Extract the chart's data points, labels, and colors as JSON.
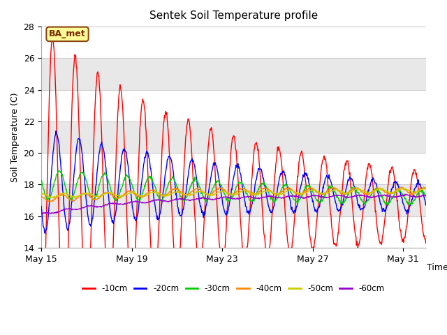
{
  "title": "Sentek Soil Temperature profile",
  "xlabel": "Time",
  "ylabel": "Soil Temperature (C)",
  "ylim": [
    14,
    28
  ],
  "yticks": [
    14,
    16,
    18,
    20,
    22,
    24,
    26,
    28
  ],
  "xtick_labels": [
    "May 15",
    "May 19",
    "May 23",
    "May 27",
    "May 31"
  ],
  "annotation": "BA_met",
  "band_colors": [
    "#ffffff",
    "#e8e8e8"
  ],
  "legend_entries": [
    "-10cm",
    "-20cm",
    "-30cm",
    "-40cm",
    "-50cm",
    "-60cm"
  ],
  "legend_colors": [
    "#ff0000",
    "#0000ff",
    "#00cc00",
    "#ff8800",
    "#cccc00",
    "#9900cc"
  ],
  "n_days": 17,
  "n_points_per_day": 48
}
